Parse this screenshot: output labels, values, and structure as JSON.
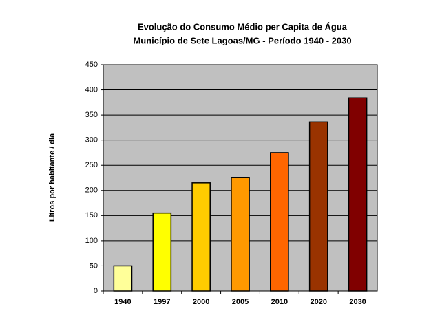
{
  "chart_data": {
    "type": "bar",
    "title": "Evolução do Consumo Médio per Capita de Água",
    "subtitle": "Município de Sete Lagoas/MG  -  Período 1940 - 2030",
    "y_label": "Litros por habitante / dia",
    "categories": [
      "1940",
      "1997",
      "2000",
      "2005",
      "2010",
      "2020",
      "2030"
    ],
    "values": [
      50,
      155,
      215,
      226,
      275,
      336,
      384
    ],
    "colors": [
      "#ffff99",
      "#ffff00",
      "#ffcc00",
      "#ff9900",
      "#ff6600",
      "#993300",
      "#800000"
    ],
    "ylim": [
      0,
      450
    ],
    "yticks": [
      0,
      50,
      100,
      150,
      200,
      250,
      300,
      350,
      400,
      450
    ],
    "grid": true
  }
}
